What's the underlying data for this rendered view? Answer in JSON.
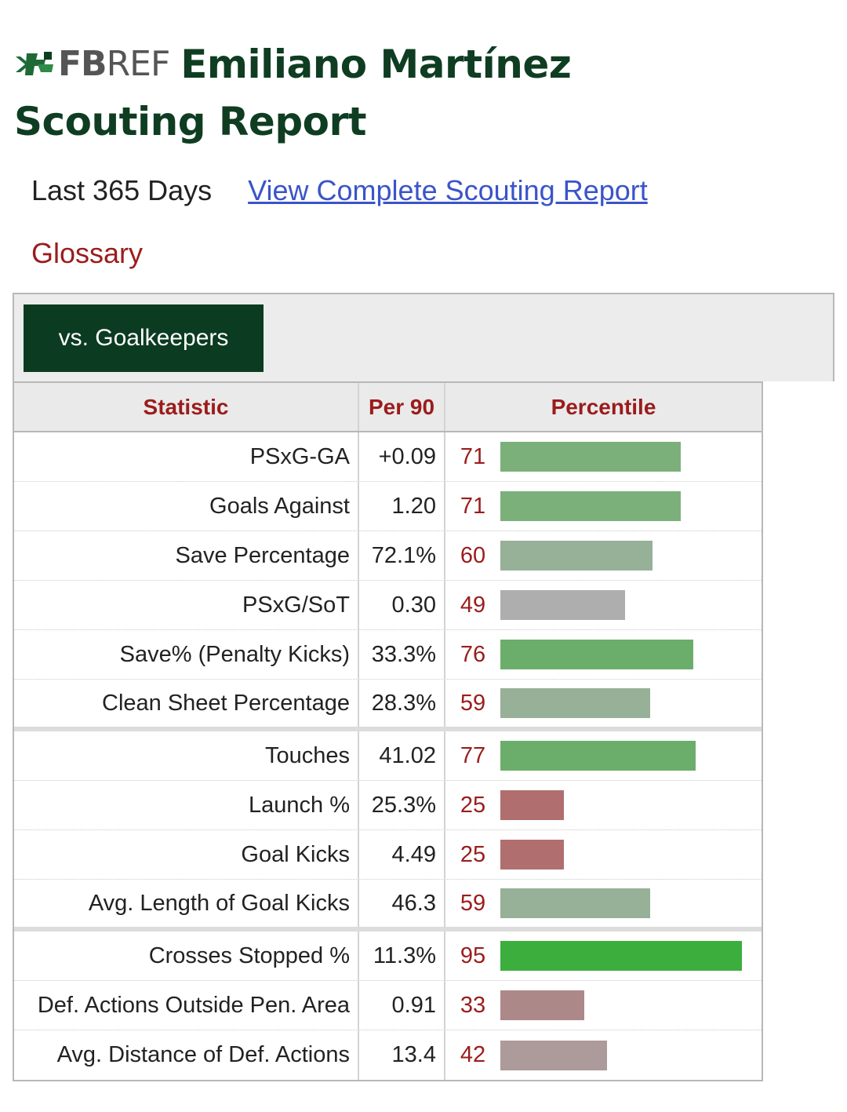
{
  "header": {
    "logo_bold": "FB",
    "logo_light": "REF",
    "title_line1": "Emiliano Martínez",
    "title_line2": "Scouting Report"
  },
  "meta": {
    "period": "Last 365 Days",
    "full_report_link": "View Complete Scouting Report",
    "glossary": "Glossary"
  },
  "tabs": [
    {
      "label": "vs. Goalkeepers",
      "active": true
    }
  ],
  "table": {
    "headers": {
      "statistic": "Statistic",
      "per90": "Per 90",
      "percentile": "Percentile"
    },
    "groups": [
      [
        {
          "stat": "PSxG-GA",
          "per90": "+0.09",
          "percentile": 71,
          "color": "#7bb07a"
        },
        {
          "stat": "Goals Against",
          "per90": "1.20",
          "percentile": 71,
          "color": "#7bb07a"
        },
        {
          "stat": "Save Percentage",
          "per90": "72.1%",
          "percentile": 60,
          "color": "#97b098"
        },
        {
          "stat": "PSxG/SoT",
          "per90": "0.30",
          "percentile": 49,
          "color": "#aeaeae"
        },
        {
          "stat": "Save% (Penalty Kicks)",
          "per90": "33.3%",
          "percentile": 76,
          "color": "#6bae6c"
        },
        {
          "stat": "Clean Sheet Percentage",
          "per90": "28.3%",
          "percentile": 59,
          "color": "#97b098"
        }
      ],
      [
        {
          "stat": "Touches",
          "per90": "41.02",
          "percentile": 77,
          "color": "#6bae6c"
        },
        {
          "stat": "Launch %",
          "per90": "25.3%",
          "percentile": 25,
          "color": "#b06f6e"
        },
        {
          "stat": "Goal Kicks",
          "per90": "4.49",
          "percentile": 25,
          "color": "#b06f6e"
        },
        {
          "stat": "Avg. Length of Goal Kicks",
          "per90": "46.3",
          "percentile": 59,
          "color": "#97b098"
        }
      ],
      [
        {
          "stat": "Crosses Stopped %",
          "per90": "11.3%",
          "percentile": 95,
          "color": "#3cae3e"
        },
        {
          "stat": "Def. Actions Outside Pen. Area",
          "per90": "0.91",
          "percentile": 33,
          "color": "#ad8888"
        },
        {
          "stat": "Avg. Distance of Def. Actions",
          "per90": "13.4",
          "percentile": 42,
          "color": "#ad9a9a"
        }
      ]
    ]
  }
}
